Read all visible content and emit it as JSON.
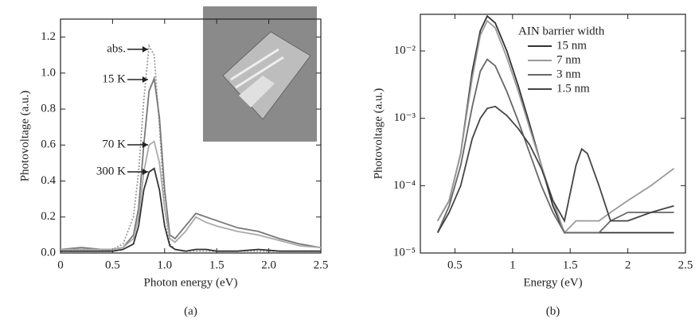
{
  "chart_data": [
    {
      "type": "line",
      "caption": "(a)",
      "x_label": "Photon energy (eV)",
      "y_label": "Photovoltage (a.u.)",
      "xlim": [
        0,
        2.5
      ],
      "ylim": [
        0,
        1.3
      ],
      "xticks": [
        0,
        0.5,
        {
          "value": 1,
          "label": "1.0"
        },
        1.5,
        {
          "value": 2,
          "label": "2.0"
        },
        2.5
      ],
      "yticks": [
        {
          "value": 0,
          "label": "0.0"
        },
        {
          "value": 0.2,
          "label": "0.2"
        },
        {
          "value": 0.4,
          "label": "0.4"
        },
        {
          "value": 0.6,
          "label": "0.6"
        },
        {
          "value": 0.8,
          "label": "0.8"
        },
        {
          "value": 1,
          "label": "1.0"
        },
        {
          "value": 1.2,
          "label": "1.2"
        }
      ],
      "log_y": false,
      "legend": "annotations",
      "x": [
        0,
        0.2,
        0.4,
        0.5,
        0.6,
        0.7,
        0.75,
        0.8,
        0.85,
        0.9,
        0.95,
        1.0,
        1.05,
        1.1,
        1.2,
        1.3,
        1.4,
        1.5,
        1.7,
        1.9,
        2.1,
        2.3,
        2.5
      ],
      "series": [
        {
          "name": "abs.",
          "color": "#9a9a9a",
          "dash": true,
          "values": [
            0.01,
            0.01,
            0.01,
            0.02,
            0.05,
            0.2,
            0.45,
            0.85,
            1.15,
            1.1,
            0.7,
            0.25,
            0.05,
            0.02,
            0.01,
            0.01,
            0.01,
            0.01,
            0.01,
            0.01,
            0.01,
            0.01,
            0.01
          ]
        },
        {
          "name": "15 K",
          "color": "#777777",
          "values": [
            0.02,
            0.03,
            0.02,
            0.02,
            0.03,
            0.1,
            0.25,
            0.6,
            0.9,
            0.97,
            0.75,
            0.35,
            0.1,
            0.08,
            0.15,
            0.22,
            0.2,
            0.18,
            0.14,
            0.12,
            0.08,
            0.05,
            0.03
          ]
        },
        {
          "name": "70 K",
          "color": "#aaaaaa",
          "values": [
            0.02,
            0.02,
            0.02,
            0.02,
            0.03,
            0.08,
            0.2,
            0.45,
            0.6,
            0.62,
            0.5,
            0.25,
            0.08,
            0.06,
            0.12,
            0.2,
            0.17,
            0.15,
            0.12,
            0.1,
            0.07,
            0.04,
            0.03
          ]
        },
        {
          "name": "300 K",
          "color": "#333333",
          "values": [
            0.01,
            0.01,
            0.01,
            0.01,
            0.02,
            0.05,
            0.15,
            0.35,
            0.45,
            0.47,
            0.35,
            0.15,
            0.04,
            0.02,
            0.01,
            0.02,
            0.02,
            0.01,
            0.01,
            0.02,
            0.01,
            0.01,
            0.01
          ]
        }
      ]
    },
    {
      "type": "line",
      "caption": "(b)",
      "x_label": "Energy (eV)",
      "y_label": "Photovoltage (a.u.)",
      "xlim": [
        0.2,
        2.5
      ],
      "ylim": [
        1e-05,
        0.035
      ],
      "xticks": [
        0.5,
        1,
        1.5,
        2,
        2.5
      ],
      "yticks": [
        {
          "value": 1e-05,
          "label": "10⁻⁵"
        },
        {
          "value": 0.0001,
          "label": "10⁻⁴"
        },
        {
          "value": 0.001,
          "label": "10⁻³"
        },
        {
          "value": 0.01,
          "label": "10⁻²"
        }
      ],
      "log_y": true,
      "legend": "upper right",
      "legend_title": "AIN barrier width",
      "x": [
        0.35,
        0.45,
        0.55,
        0.65,
        0.72,
        0.78,
        0.85,
        0.95,
        1.05,
        1.15,
        1.25,
        1.35,
        1.45,
        1.55,
        1.6,
        1.65,
        1.75,
        1.85,
        2.0,
        2.2,
        2.4
      ],
      "series": [
        {
          "name": "15 nm",
          "color": "#333333",
          "values": [
            3e-05,
            6e-05,
            0.0003,
            0.005,
            0.02,
            0.033,
            0.026,
            0.01,
            0.003,
            0.0008,
            0.0002,
            5e-05,
            2e-05,
            2e-05,
            2e-05,
            2e-05,
            2e-05,
            2e-05,
            2e-05,
            2e-05,
            2e-05
          ]
        },
        {
          "name": "7 nm",
          "color": "#999999",
          "values": [
            3e-05,
            6e-05,
            0.0003,
            0.004,
            0.017,
            0.028,
            0.022,
            0.008,
            0.0025,
            0.0007,
            0.0002,
            6e-05,
            2e-05,
            3e-05,
            3e-05,
            3e-05,
            3e-05,
            4e-05,
            6e-05,
            0.0001,
            0.00018
          ]
        },
        {
          "name": "3 nm",
          "color": "#666666",
          "values": [
            2e-05,
            5e-05,
            0.0002,
            0.0015,
            0.005,
            0.0075,
            0.006,
            0.0025,
            0.0009,
            0.0003,
            0.0001,
            4e-05,
            2e-05,
            2e-05,
            2e-05,
            2e-05,
            2e-05,
            3e-05,
            4e-05,
            4e-05,
            4e-05
          ]
        },
        {
          "name": "1.5 nm",
          "color": "#444444",
          "values": [
            2e-05,
            4e-05,
            0.0001,
            0.0005,
            0.001,
            0.0014,
            0.0015,
            0.0011,
            0.0007,
            0.0004,
            0.00018,
            6e-05,
            3e-05,
            0.0002,
            0.00035,
            0.0003,
            0.0001,
            3e-05,
            3e-05,
            4e-05,
            5e-05
          ]
        }
      ]
    }
  ]
}
